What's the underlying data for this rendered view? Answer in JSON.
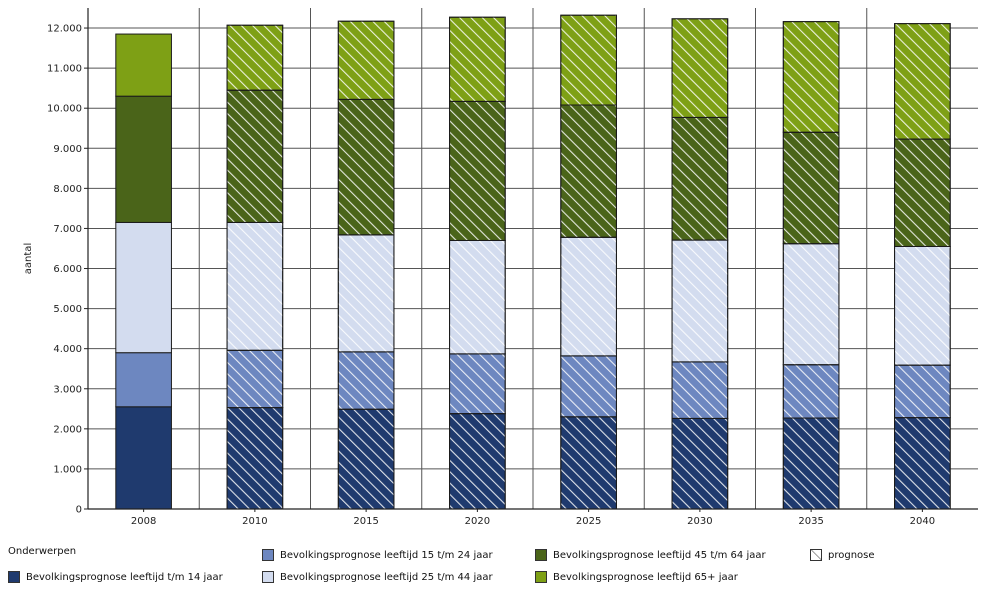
{
  "chart_data": {
    "type": "bar",
    "stacked": true,
    "categories": [
      "2008",
      "2010",
      "2015",
      "2020",
      "2025",
      "2030",
      "2035",
      "2040"
    ],
    "ylabel": "aantal",
    "ylim": [
      0,
      12500
    ],
    "yticks": [
      0,
      1000,
      2000,
      3000,
      4000,
      5000,
      6000,
      7000,
      8000,
      9000,
      10000,
      11000,
      12000
    ],
    "ytick_labels": [
      "0",
      "1.000",
      "2.000",
      "3.000",
      "4.000",
      "5.000",
      "6.000",
      "7.000",
      "8.000",
      "9.000",
      "10.000",
      "11.000",
      "12.000"
    ],
    "grid": true,
    "prognosis_categories": [
      "2010",
      "2015",
      "2020",
      "2025",
      "2030",
      "2035",
      "2040"
    ],
    "series": [
      {
        "name": "Bevolkingsprognose leeftijd t/m 14 jaar",
        "color": "#1f3a6e",
        "values": [
          2550,
          2530,
          2490,
          2380,
          2300,
          2260,
          2270,
          2280
        ]
      },
      {
        "name": "Bevolkingsprognose leeftijd 15 t/m 24 jaar",
        "color": "#6d87c0",
        "values": [
          1350,
          1430,
          1430,
          1490,
          1520,
          1410,
          1330,
          1310
        ]
      },
      {
        "name": "Bevolkingsprognose leeftijd 25 t/m 44 jaar",
        "color": "#d3dcef",
        "values": [
          3250,
          3190,
          2920,
          2830,
          2960,
          3040,
          3020,
          2960
        ]
      },
      {
        "name": "Bevolkingsprognose leeftijd 45 t/m 64 jaar",
        "color": "#4a6419",
        "values": [
          3150,
          3300,
          3380,
          3470,
          3300,
          3060,
          2780,
          2680
        ]
      },
      {
        "name": "Bevolkingsprognose leeftijd 65+ jaar",
        "color": "#7ea015",
        "values": [
          1550,
          1620,
          1950,
          2100,
          2240,
          2460,
          2760,
          2880
        ]
      }
    ],
    "legend": {
      "title": "Onderwerpen",
      "position": "bottom",
      "prognose_label": "prognose"
    }
  }
}
